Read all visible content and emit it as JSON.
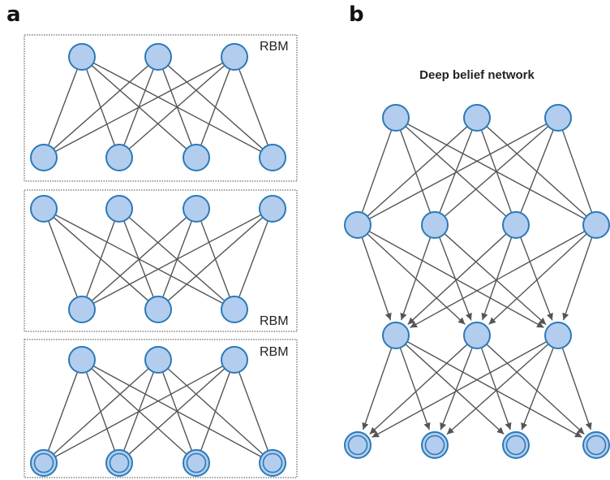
{
  "panels": {
    "a": {
      "label": "a"
    },
    "b": {
      "label": "b"
    }
  },
  "rbm_label": "RBM",
  "dbn_title": "Deep belief network",
  "colors": {
    "node_fill": "#b3cdee",
    "node_stroke": "#2a7ab8",
    "edge": "#555555",
    "box_border": "#444444"
  }
}
